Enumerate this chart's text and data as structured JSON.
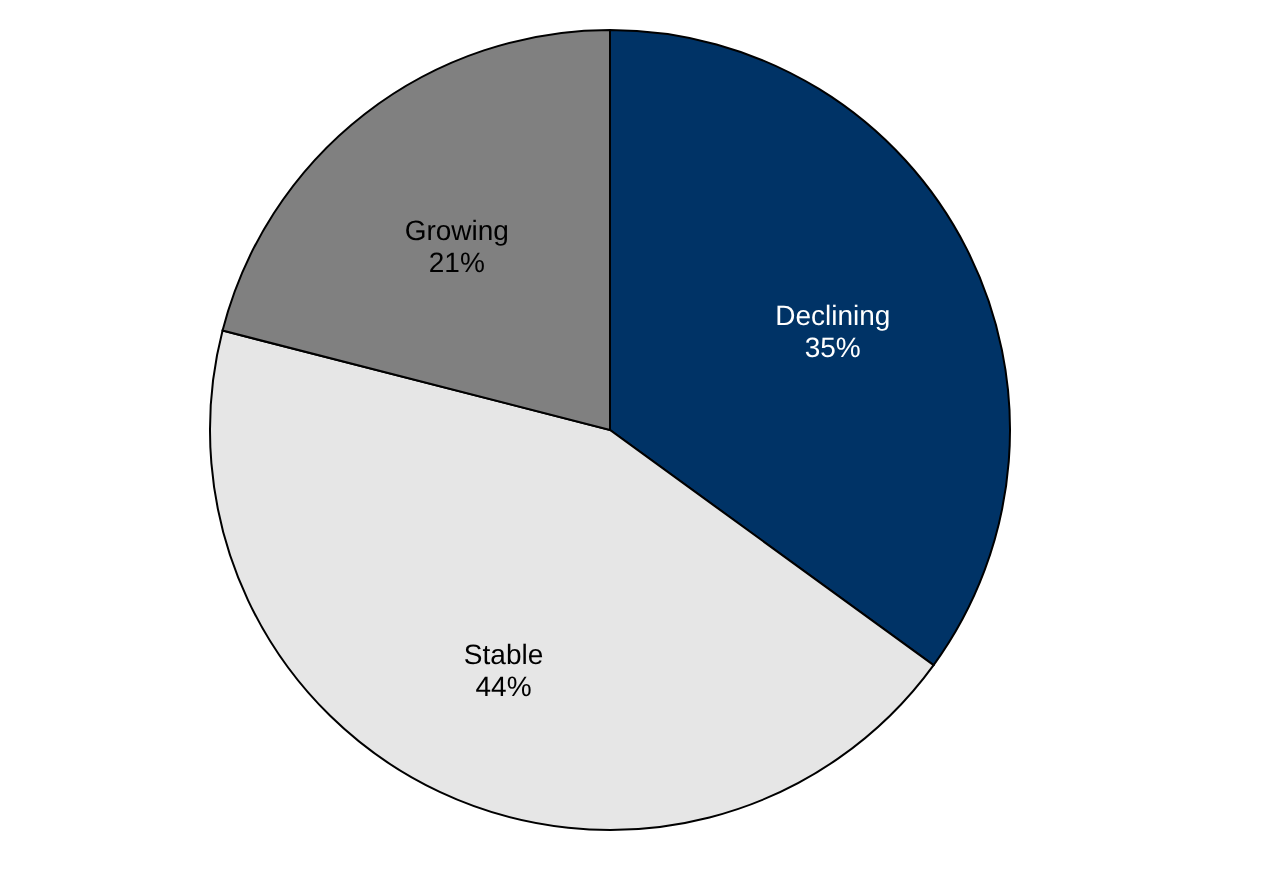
{
  "chart_data": {
    "type": "pie",
    "categories": [
      "Declining",
      "Stable",
      "Growing"
    ],
    "values": [
      35,
      44,
      21
    ],
    "colors": [
      "#003366",
      "#e6e6e6",
      "#808080"
    ],
    "value_labels": [
      "35%",
      "44%",
      "21%"
    ],
    "legend": false
  }
}
